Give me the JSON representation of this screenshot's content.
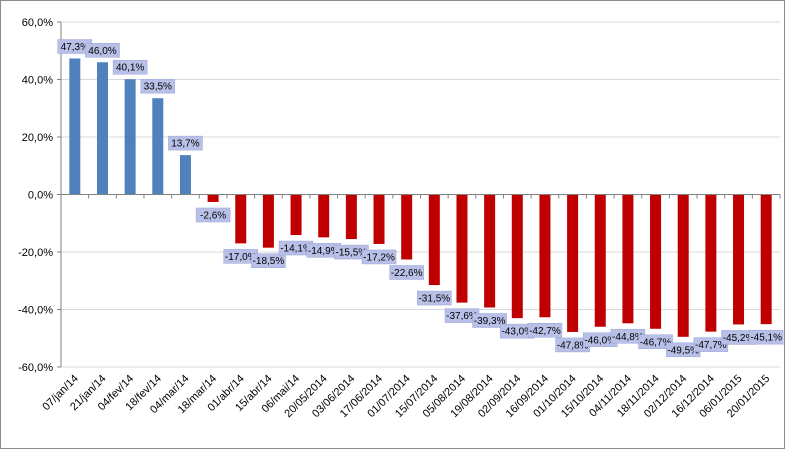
{
  "chart_data": {
    "type": "bar",
    "title": "",
    "xlabel": "",
    "ylabel": "",
    "ylim": [
      -60,
      60
    ],
    "yticks": [
      60,
      40,
      20,
      0,
      -20,
      -40,
      -60
    ],
    "ytick_labels": [
      "60,0%",
      "40,0%",
      "20,0%",
      "0,0%",
      "-20,0%",
      "-40,0%",
      "-60,0%"
    ],
    "grid": true,
    "legend": "none",
    "colors": {
      "positive": "#4F81BD",
      "negative": "#C00000",
      "label_box": "#B8C0E8",
      "grid": "#d9d9d9"
    },
    "categories": [
      "07/jan/14",
      "21/jan/14",
      "04/fev/14",
      "18/fev/14",
      "04/mar/14",
      "18/mar/14",
      "01/abr/14",
      "15/abr/14",
      "06/mai/14",
      "20/05/2014",
      "03/06/2014",
      "17/06/2014",
      "01/07/2014",
      "15/07/2014",
      "05/08/2014",
      "19/08/2014",
      "02/09/2014",
      "16/09/2014",
      "01/10/2014",
      "15/10/2014",
      "04/11/2014",
      "18/11/2014",
      "02/12/2014",
      "16/12/2014",
      "06/01/2015",
      "20/01/2015"
    ],
    "values": [
      47.3,
      46.0,
      40.1,
      33.5,
      13.7,
      -2.6,
      -17.0,
      -18.5,
      -14.1,
      -14.9,
      -15.5,
      -17.2,
      -22.6,
      -31.5,
      -37.6,
      -39.3,
      -43.0,
      -42.7,
      -47.8,
      -46.0,
      -44.8,
      -46.7,
      -49.5,
      -47.7,
      -45.2,
      -45.1
    ],
    "data_labels": [
      "47,3%",
      "46,0%",
      "40,1%",
      "33,5%",
      "13,7%",
      "-2,6%",
      "-17,0%",
      "-18,5%",
      "-14,1%",
      "-14,9%",
      "-15,5%",
      "-17,2%",
      "-22,6%",
      "-31,5%",
      "-37,6%",
      "-39,3%",
      "-43,0%",
      "-42,7%",
      "-47,8%",
      "-46,0%",
      "-44,8%",
      "-46,7%",
      "-49,5%",
      "-47,7%",
      "-45,2%",
      "-45,1%"
    ]
  }
}
